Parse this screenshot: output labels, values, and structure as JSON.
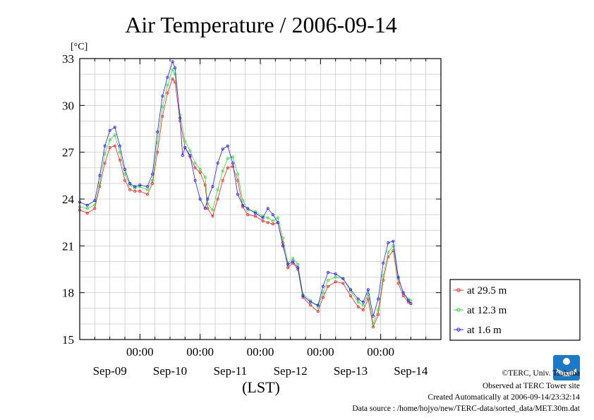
{
  "chart_data": {
    "type": "line",
    "title": "Air Temperature / 2006-09-14",
    "ylabel": "[°C]",
    "xlabel": "(LST)",
    "ylim": [
      15,
      33
    ],
    "yticks": [
      15,
      18,
      21,
      24,
      27,
      30,
      33
    ],
    "xlim_hours": [
      0,
      144
    ],
    "xticks": [
      {
        "pos": 24,
        "label": "00:00",
        "date": "Sep-09"
      },
      {
        "pos": 48,
        "label": "00:00",
        "date": "Sep-10"
      },
      {
        "pos": 72,
        "label": "00:00",
        "date": "Sep-11"
      },
      {
        "pos": 96,
        "label": "00:00",
        "date": "Sep-12"
      },
      {
        "pos": 120,
        "label": "00:00",
        "date": "Sep-13"
      },
      {
        "pos": 144,
        "label": "",
        "date": "Sep-14"
      }
    ],
    "grid": true,
    "legend_position": "bottom-right-outside",
    "series": [
      {
        "name": "at 29.5 m",
        "color": "#ff2020",
        "points": [
          [
            0,
            23.3
          ],
          [
            3,
            23.1
          ],
          [
            6,
            23.4
          ],
          [
            8,
            24.8
          ],
          [
            10,
            26.3
          ],
          [
            12,
            27.3
          ],
          [
            14,
            27.4
          ],
          [
            16,
            26.5
          ],
          [
            18,
            25.2
          ],
          [
            20,
            24.6
          ],
          [
            22,
            24.5
          ],
          [
            24,
            24.5
          ],
          [
            27,
            24.3
          ],
          [
            29,
            25.0
          ],
          [
            31,
            27.0
          ],
          [
            33,
            29.3
          ],
          [
            35,
            30.8
          ],
          [
            37,
            31.7
          ],
          [
            38,
            31.5
          ],
          [
            40,
            29.0
          ],
          [
            42,
            27.3
          ],
          [
            44,
            26.7
          ],
          [
            46,
            26.0
          ],
          [
            48,
            25.7
          ],
          [
            50,
            24.9
          ],
          [
            51,
            23.4
          ],
          [
            53,
            22.9
          ],
          [
            55,
            24.0
          ],
          [
            57,
            25.2
          ],
          [
            59,
            26.0
          ],
          [
            61,
            26.1
          ],
          [
            63,
            25.2
          ],
          [
            65,
            23.5
          ],
          [
            67,
            23.0
          ],
          [
            70,
            22.9
          ],
          [
            73,
            22.6
          ],
          [
            75,
            22.5
          ],
          [
            77,
            22.4
          ],
          [
            79,
            22.5
          ],
          [
            81,
            21.2
          ],
          [
            83,
            19.6
          ],
          [
            85,
            19.9
          ],
          [
            87,
            19.5
          ],
          [
            89,
            17.7
          ],
          [
            92,
            17.2
          ],
          [
            95,
            16.8
          ],
          [
            97,
            17.7
          ],
          [
            99,
            18.4
          ],
          [
            102,
            18.7
          ],
          [
            105,
            18.6
          ],
          [
            108,
            17.8
          ],
          [
            111,
            17.1
          ],
          [
            113,
            16.9
          ],
          [
            115,
            17.6
          ],
          [
            117,
            15.8
          ],
          [
            119,
            16.6
          ],
          [
            121,
            18.8
          ],
          [
            123,
            20.3
          ],
          [
            125,
            20.7
          ],
          [
            127,
            18.6
          ],
          [
            129,
            17.8
          ],
          [
            131,
            17.4
          ],
          [
            132,
            17.3
          ]
        ]
      },
      {
        "name": "at 12.3 m",
        "color": "#30e030",
        "points": [
          [
            0,
            23.5
          ],
          [
            3,
            23.4
          ],
          [
            6,
            23.6
          ],
          [
            8,
            25.0
          ],
          [
            10,
            26.9
          ],
          [
            12,
            27.8
          ],
          [
            14,
            28.1
          ],
          [
            16,
            27.0
          ],
          [
            18,
            25.6
          ],
          [
            20,
            24.9
          ],
          [
            22,
            24.7
          ],
          [
            24,
            24.8
          ],
          [
            27,
            24.6
          ],
          [
            29,
            25.2
          ],
          [
            31,
            27.6
          ],
          [
            33,
            29.9
          ],
          [
            35,
            31.3
          ],
          [
            37,
            32.3
          ],
          [
            38,
            32.0
          ],
          [
            40,
            29.4
          ],
          [
            42,
            27.7
          ],
          [
            44,
            27.1
          ],
          [
            46,
            26.3
          ],
          [
            48,
            25.9
          ],
          [
            50,
            25.4
          ],
          [
            51,
            23.7
          ],
          [
            53,
            23.3
          ],
          [
            55,
            24.6
          ],
          [
            57,
            25.8
          ],
          [
            59,
            26.6
          ],
          [
            61,
            26.7
          ],
          [
            63,
            25.6
          ],
          [
            65,
            23.9
          ],
          [
            67,
            23.3
          ],
          [
            70,
            23.2
          ],
          [
            73,
            22.9
          ],
          [
            75,
            22.8
          ],
          [
            77,
            22.6
          ],
          [
            79,
            22.8
          ],
          [
            81,
            21.5
          ],
          [
            83,
            19.9
          ],
          [
            85,
            20.2
          ],
          [
            87,
            19.8
          ],
          [
            89,
            17.9
          ],
          [
            92,
            17.5
          ],
          [
            95,
            17.1
          ],
          [
            97,
            18.0
          ],
          [
            99,
            18.8
          ],
          [
            102,
            19.0
          ],
          [
            105,
            18.9
          ],
          [
            108,
            18.1
          ],
          [
            111,
            17.4
          ],
          [
            113,
            17.2
          ],
          [
            115,
            17.9
          ],
          [
            117,
            16.0
          ],
          [
            119,
            16.9
          ],
          [
            121,
            19.1
          ],
          [
            123,
            20.6
          ],
          [
            125,
            21.0
          ],
          [
            127,
            18.9
          ],
          [
            129,
            18.0
          ],
          [
            131,
            17.6
          ],
          [
            132,
            17.5
          ]
        ]
      },
      {
        "name": "at 1.6 m",
        "color": "#2020ff",
        "points": [
          [
            0,
            23.8
          ],
          [
            3,
            23.6
          ],
          [
            6,
            23.9
          ],
          [
            8,
            25.5
          ],
          [
            10,
            27.4
          ],
          [
            12,
            28.4
          ],
          [
            14,
            28.6
          ],
          [
            16,
            27.4
          ],
          [
            18,
            25.9
          ],
          [
            20,
            25.0
          ],
          [
            22,
            24.8
          ],
          [
            24,
            24.9
          ],
          [
            27,
            24.8
          ],
          [
            29,
            25.6
          ],
          [
            31,
            28.3
          ],
          [
            33,
            30.6
          ],
          [
            35,
            31.8
          ],
          [
            37,
            32.8
          ],
          [
            38,
            32.4
          ],
          [
            40,
            29.2
          ],
          [
            41,
            26.8
          ],
          [
            42,
            27.3
          ],
          [
            44,
            26.8
          ],
          [
            46,
            25.2
          ],
          [
            48,
            24.0
          ],
          [
            50,
            23.4
          ],
          [
            51,
            24.0
          ],
          [
            53,
            24.8
          ],
          [
            55,
            26.3
          ],
          [
            57,
            27.2
          ],
          [
            59,
            27.4
          ],
          [
            61,
            26.3
          ],
          [
            63,
            24.3
          ],
          [
            65,
            23.6
          ],
          [
            67,
            23.4
          ],
          [
            70,
            23.1
          ],
          [
            73,
            22.8
          ],
          [
            75,
            23.4
          ],
          [
            77,
            23.0
          ],
          [
            79,
            22.5
          ],
          [
            81,
            21.0
          ],
          [
            83,
            19.8
          ],
          [
            85,
            20.0
          ],
          [
            87,
            19.6
          ],
          [
            89,
            17.8
          ],
          [
            92,
            17.4
          ],
          [
            95,
            17.2
          ],
          [
            97,
            18.4
          ],
          [
            99,
            19.3
          ],
          [
            102,
            19.2
          ],
          [
            105,
            18.9
          ],
          [
            108,
            18.2
          ],
          [
            111,
            17.6
          ],
          [
            113,
            17.4
          ],
          [
            115,
            18.2
          ],
          [
            117,
            16.5
          ],
          [
            119,
            17.6
          ],
          [
            121,
            19.9
          ],
          [
            123,
            21.2
          ],
          [
            125,
            21.3
          ],
          [
            127,
            19.0
          ],
          [
            129,
            18.0
          ],
          [
            131,
            17.5
          ],
          [
            132,
            17.3
          ]
        ]
      }
    ]
  },
  "credits": {
    "copyright": "©TERC, Univ. Tsukuba",
    "site": "Observed at TERC Tower site",
    "created": "Created Automatically at 2006-09-14/23:32:14",
    "source": "Data source : /home/hojyo/new/TERC-data/sorted_data/MET.30m.dat"
  }
}
